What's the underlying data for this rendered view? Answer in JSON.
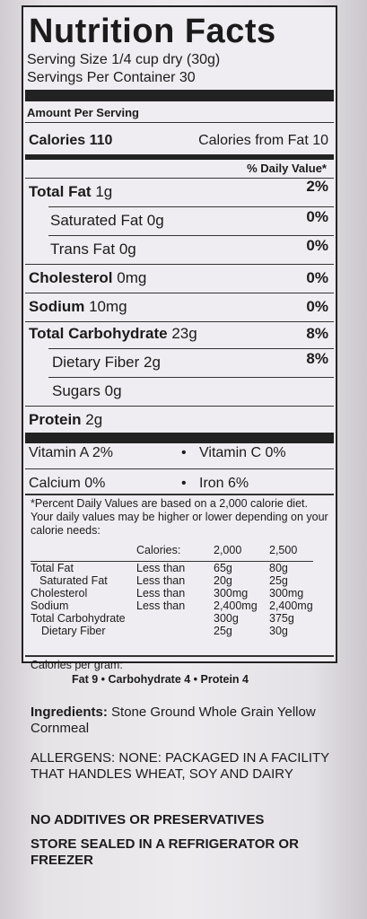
{
  "title": "Nutrition Facts",
  "serving_size": "Serving Size 1/4 cup dry  (30g)",
  "servings_per_container": "Servings Per Container 30",
  "amount_per_serving": "Amount Per Serving",
  "calories": "Calories 110",
  "calories_from_fat": "Calories from Fat 10",
  "daily_value_header": "% Daily Value*",
  "nutrients": [
    {
      "name": "Total Fat",
      "amount": "1g",
      "pct": "2%"
    },
    {
      "name": "Saturated Fat",
      "amount": "0g",
      "pct": "0%"
    },
    {
      "name": "Trans Fat",
      "amount": "0g",
      "pct": "0%"
    },
    {
      "name": "Cholesterol",
      "amount": "0mg",
      "pct": "0%"
    },
    {
      "name": "Sodium",
      "amount": "10mg",
      "pct": "0%"
    },
    {
      "name": "Total Carbohydrate",
      "amount": "23g",
      "pct": "8%"
    },
    {
      "name": "Dietary Fiber",
      "amount": "2g",
      "pct": "8%"
    },
    {
      "name": "Sugars",
      "amount": "0g",
      "pct": ""
    },
    {
      "name": "Protein",
      "amount": "2g",
      "pct": ""
    }
  ],
  "vitamins": {
    "vitamin_a": "Vitamin A 2%",
    "vitamin_c": "Vitamin C 0%",
    "calcium": "Calcium 0%",
    "iron": "Iron 6%",
    "bullet": "•"
  },
  "footnote": "*Percent Daily Values are based on a 2,000 calorie diet. Your daily values may be higher or lower depending on your calorie needs:",
  "dv_table": {
    "header": [
      "Calories:",
      "2,000",
      "2,500"
    ],
    "rows": [
      [
        "Total Fat",
        "Less than",
        "65g",
        "80g"
      ],
      [
        "Saturated Fat",
        "Less than",
        "20g",
        "25g"
      ],
      [
        "Cholesterol",
        "Less than",
        "300mg",
        "300mg"
      ],
      [
        "Sodium",
        "Less than",
        "2,400mg",
        "2,400mg"
      ],
      [
        "Total Carbohydrate",
        "",
        "300g",
        "375g"
      ],
      [
        "Dietary Fiber",
        "",
        "25g",
        "30g"
      ]
    ]
  },
  "calories_per_gram": "Calories per gram:",
  "per_gram_values": "Fat 9  •  Carbohydrate 4  •  Protein 4",
  "ingredients_label": "Ingredients:",
  "ingredients_text": "Stone Ground Whole Grain Yellow Cornmeal",
  "allergens": "ALLERGENS: NONE: PACKAGED IN A FACILITY THAT HANDLES WHEAT, SOY AND DAIRY",
  "no_additives": "NO ADDITIVES OR PRESERVATIVES",
  "storage": "STORE SEALED IN A REFRIGERATOR OR FREEZER"
}
